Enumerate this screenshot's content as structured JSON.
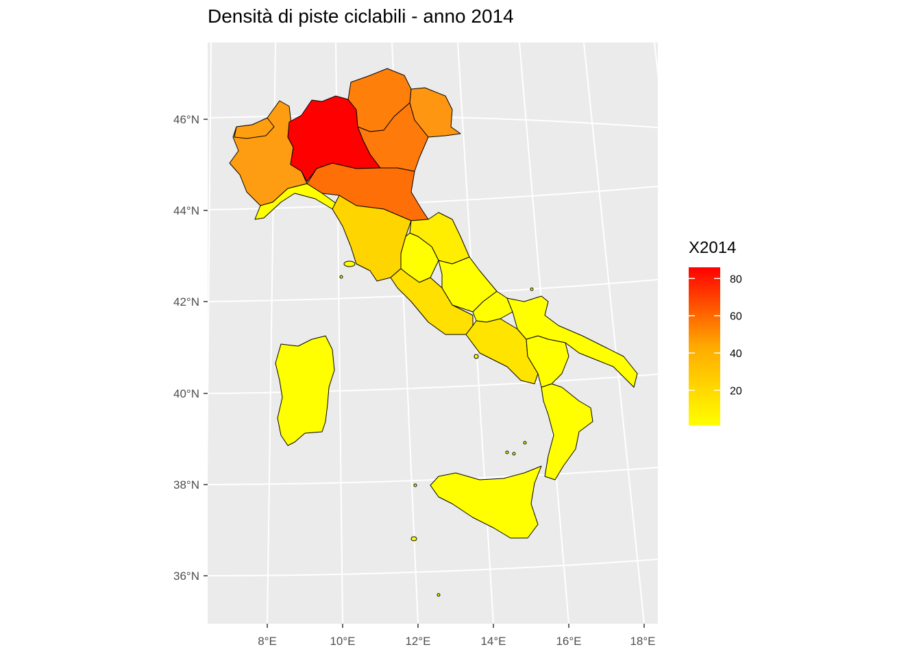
{
  "title": "Densità di piste ciclabili - anno 2014",
  "axes": {
    "lat_ticks": [
      "46°N",
      "44°N",
      "42°N",
      "40°N",
      "38°N",
      "36°N"
    ],
    "lon_ticks": [
      "8°E",
      "10°E",
      "12°E",
      "14°E",
      "16°E",
      "18°E"
    ]
  },
  "legend": {
    "title": "X2014",
    "ticks": [
      "80",
      "60",
      "40",
      "20"
    ],
    "tick_values": [
      80,
      60,
      40,
      20
    ],
    "range": [
      1,
      86
    ],
    "colors": {
      "low": "#ffff00",
      "high": "#ff0000"
    }
  },
  "regions": [
    {
      "name": "Lombardia",
      "value": 85,
      "color": "#ff0000"
    },
    {
      "name": "Veneto",
      "value": 50,
      "color": "#fe7a0a"
    },
    {
      "name": "Emilia-Romagna",
      "value": 52,
      "color": "#fe7007"
    },
    {
      "name": "Trentino-Alto Adige",
      "value": 48,
      "color": "#fe800b"
    },
    {
      "name": "Friuli-Venezia Giulia",
      "value": 40,
      "color": "#fe9612"
    },
    {
      "name": "Piemonte",
      "value": 37,
      "color": "#fe9d12"
    },
    {
      "name": "Valle d'Aosta",
      "value": 36,
      "color": "#fe9f12"
    },
    {
      "name": "Liguria",
      "value": 4,
      "color": "#ffff00"
    },
    {
      "name": "Toscana",
      "value": 20,
      "color": "#ffd500"
    },
    {
      "name": "Umbria",
      "value": 3,
      "color": "#ffff00"
    },
    {
      "name": "Marche",
      "value": 6,
      "color": "#ffee00"
    },
    {
      "name": "Lazio",
      "value": 14,
      "color": "#ffe000"
    },
    {
      "name": "Abruzzo",
      "value": 4,
      "color": "#ffff00"
    },
    {
      "name": "Molise",
      "value": 3,
      "color": "#ffff00"
    },
    {
      "name": "Campania",
      "value": 16,
      "color": "#ffe400"
    },
    {
      "name": "Puglia",
      "value": 4,
      "color": "#ffff00"
    },
    {
      "name": "Basilicata",
      "value": 3,
      "color": "#ffff00"
    },
    {
      "name": "Calabria",
      "value": 3,
      "color": "#ffff00"
    },
    {
      "name": "Sicilia",
      "value": 3,
      "color": "#ffff00"
    },
    {
      "name": "Sardegna",
      "value": 3,
      "color": "#ffff00"
    }
  ]
}
